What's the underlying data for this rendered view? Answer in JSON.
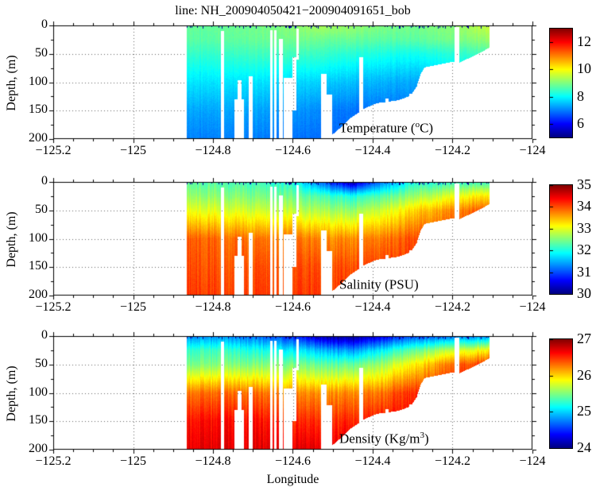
{
  "figure": {
    "title": "line: NH_200904050421−200904091651_bob",
    "xlabel": "Longitude",
    "ylabel": "Depth, (m)",
    "background": "#ffffff"
  },
  "axes": {
    "xlim": [
      -125.2,
      -124
    ],
    "ylim": [
      0,
      200
    ],
    "x_ticks": [
      -125.2,
      -125,
      -124.8,
      -124.6,
      -124.4,
      -124.2,
      -124
    ],
    "x_tick_labels": [
      "−125.2",
      "−125",
      "−124.8",
      "−124.6",
      "−124.4",
      "−124.2",
      "−124"
    ],
    "x_minor_step": 0.05,
    "y_ticks": [
      0,
      50,
      100,
      150,
      200
    ],
    "y_tick_labels": [
      "0",
      "50",
      "100",
      "150",
      "200"
    ],
    "y_minor_step": 25,
    "grid_style": "dotted",
    "grid_lons": [
      -125,
      -124.8,
      -124.6,
      -124.4,
      -124.2
    ],
    "grid_depths": [
      50,
      100,
      150
    ]
  },
  "data_mask": {
    "extent_lon": [
      -124.866,
      -124.108
    ],
    "bathymetry": [
      [
        -124.88,
        210
      ],
      [
        -124.53,
        210
      ],
      [
        -124.515,
        200
      ],
      [
        -124.49,
        186
      ],
      [
        -124.455,
        163
      ],
      [
        -124.42,
        146
      ],
      [
        -124.39,
        137
      ],
      [
        -124.338,
        132
      ],
      [
        -124.305,
        124
      ],
      [
        -124.29,
        108
      ],
      [
        -124.28,
        86
      ],
      [
        -124.27,
        74
      ],
      [
        -124.2,
        64
      ],
      [
        -124.185,
        66
      ],
      [
        -124.16,
        58
      ],
      [
        -124.13,
        48
      ],
      [
        -124.105,
        38
      ]
    ],
    "gaps": [
      [
        -124.78,
        -124.773,
        10,
        210
      ],
      [
        -124.747,
        -124.722,
        130,
        210
      ],
      [
        -124.738,
        -124.728,
        96,
        210
      ],
      [
        -124.71,
        -124.7,
        90,
        210
      ],
      [
        -124.657,
        -124.65,
        8,
        210
      ],
      [
        -124.646,
        -124.64,
        8,
        210
      ],
      [
        -124.635,
        -124.625,
        24,
        210
      ],
      [
        -124.623,
        -124.601,
        93,
        210
      ],
      [
        -124.601,
        -124.591,
        56,
        150
      ],
      [
        -124.592,
        -124.586,
        6,
        60
      ],
      [
        -124.529,
        -124.515,
        86,
        210
      ],
      [
        -124.529,
        -124.501,
        122,
        210
      ],
      [
        -124.434,
        -124.424,
        56,
        210
      ],
      [
        -124.368,
        -124.361,
        128,
        210
      ],
      [
        -124.308,
        -124.302,
        120,
        210
      ],
      [
        -124.195,
        -124.183,
        3,
        210
      ]
    ]
  },
  "chart_data": [
    {
      "type": "heatmap",
      "name": "temperature-section",
      "label_pre": "Temperature (",
      "label_sup": "o",
      "label_post": "C)",
      "colormap": "jet",
      "vmin": 5,
      "vmax": 13,
      "colorbar_tick_values": [
        6,
        8,
        10,
        12
      ],
      "colorbar_tick_labels": [
        "6",
        "8",
        "10",
        "12"
      ],
      "noise": 0.1,
      "lons": [
        -124.87,
        -124.8,
        -124.7,
        -124.6,
        -124.52,
        -124.45,
        -124.38,
        -124.3,
        -124.2,
        -124.11
      ],
      "depths": [
        0,
        25,
        50,
        100,
        150,
        200
      ],
      "values": [
        [
          8.8,
          8.8,
          8.9,
          9.1,
          9.3,
          9.2,
          9.0,
          8.9,
          9.1,
          9.6
        ],
        [
          8.7,
          8.7,
          8.8,
          8.9,
          8.8,
          8.8,
          8.7,
          8.7,
          8.9,
          9.2
        ],
        [
          8.4,
          8.4,
          8.5,
          8.5,
          8.4,
          8.3,
          8.2,
          8.1,
          8.3,
          8.6
        ],
        [
          7.8,
          7.8,
          7.8,
          7.7,
          7.6,
          7.5,
          7.4,
          7.3,
          7.5,
          7.5
        ],
        [
          7.3,
          7.3,
          7.3,
          7.2,
          7.0,
          6.9,
          6.9,
          6.9,
          6.9,
          6.9
        ],
        [
          7.0,
          7.0,
          7.0,
          6.9,
          6.8,
          6.8,
          6.8,
          6.8,
          6.8,
          6.8
        ]
      ]
    },
    {
      "type": "heatmap",
      "name": "salinity-section",
      "label_pre": "Salinity (PSU)",
      "label_sup": "",
      "label_post": "",
      "colormap": "jet",
      "vmin": 30,
      "vmax": 35,
      "colorbar_tick_values": [
        30,
        31,
        32,
        33,
        34,
        35
      ],
      "colorbar_tick_labels": [
        "30",
        "31",
        "32",
        "33",
        "34",
        "35"
      ],
      "noise": 0.15,
      "lons": [
        -124.87,
        -124.8,
        -124.7,
        -124.6,
        -124.52,
        -124.45,
        -124.38,
        -124.3,
        -124.2,
        -124.11
      ],
      "depths": [
        0,
        25,
        50,
        100,
        150,
        200
      ],
      "values": [
        [
          32.3,
          32.3,
          32.2,
          32.0,
          31.0,
          30.2,
          31.2,
          32.0,
          32.1,
          32.2
        ],
        [
          32.6,
          32.6,
          32.5,
          32.4,
          32.2,
          32.0,
          32.3,
          32.6,
          33.0,
          33.3
        ],
        [
          33.0,
          33.0,
          32.9,
          32.8,
          32.7,
          32.6,
          32.9,
          33.3,
          33.7,
          34.0
        ],
        [
          33.9,
          33.9,
          33.8,
          33.8,
          33.7,
          33.7,
          33.8,
          34.0,
          34.1,
          34.1
        ],
        [
          34.0,
          34.0,
          34.0,
          34.0,
          34.0,
          34.0,
          34.1,
          34.1,
          34.1,
          34.1
        ],
        [
          34.1,
          34.1,
          34.1,
          34.1,
          34.1,
          34.1,
          34.1,
          34.1,
          34.1,
          34.1
        ]
      ]
    },
    {
      "type": "heatmap",
      "name": "density-section",
      "label_pre": "Density (Kg/m",
      "label_sup": "3",
      "label_post": ")",
      "colormap": "jet",
      "vmin": 24,
      "vmax": 27,
      "colorbar_tick_values": [
        24,
        25,
        26,
        27
      ],
      "colorbar_tick_labels": [
        "24",
        "25",
        "26",
        "27"
      ],
      "noise": 0.1,
      "lons": [
        -124.87,
        -124.8,
        -124.7,
        -124.6,
        -124.52,
        -124.45,
        -124.38,
        -124.3,
        -124.2,
        -124.11
      ],
      "depths": [
        0,
        25,
        50,
        100,
        150,
        200
      ],
      "values": [
        [
          24.8,
          24.8,
          24.7,
          24.5,
          24.1,
          24.0,
          24.3,
          24.6,
          24.7,
          24.8
        ],
        [
          25.3,
          25.3,
          25.2,
          25.1,
          24.9,
          24.8,
          25.1,
          25.4,
          25.7,
          25.9
        ],
        [
          25.5,
          25.5,
          25.5,
          25.5,
          25.4,
          25.4,
          25.6,
          25.9,
          26.3,
          26.5
        ],
        [
          26.3,
          26.3,
          26.3,
          26.2,
          26.2,
          26.2,
          26.3,
          26.5,
          26.6,
          26.6
        ],
        [
          26.6,
          26.6,
          26.6,
          26.5,
          26.5,
          26.5,
          26.6,
          26.6,
          26.7,
          26.7
        ],
        [
          26.7,
          26.7,
          26.7,
          26.7,
          26.7,
          26.7,
          26.7,
          26.7,
          26.7,
          26.7
        ]
      ]
    }
  ]
}
